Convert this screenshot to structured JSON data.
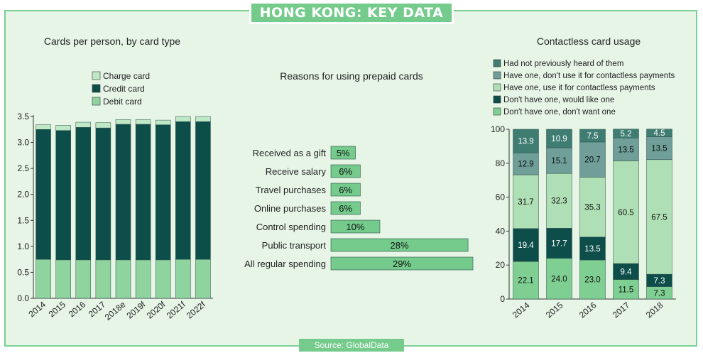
{
  "header": {
    "title": "HONG KONG: KEY DATA"
  },
  "footer": {
    "source": "Source: GlobalData"
  },
  "colors": {
    "charge": "#bfe8c6",
    "credit": "#0d4e4a",
    "debit": "#8fd49f",
    "prepaid": "#74cb8c",
    "c1": "#7fcf93",
    "c2": "#0e4e4a",
    "c3": "#afdfb4",
    "c4": "#6f9f98",
    "c5": "#3f7c72"
  },
  "chart_data": [
    {
      "type": "bar",
      "stacked": true,
      "title": "Cards per person, by card type",
      "categories": [
        "2014",
        "2015",
        "2016",
        "2017",
        "2018e",
        "2019f",
        "2020f",
        "2021f",
        "2022f"
      ],
      "series": [
        {
          "name": "Debit card",
          "values": [
            0.75,
            0.74,
            0.74,
            0.74,
            0.74,
            0.74,
            0.74,
            0.75,
            0.75
          ]
        },
        {
          "name": "Credit card",
          "values": [
            2.5,
            2.49,
            2.55,
            2.54,
            2.61,
            2.61,
            2.6,
            2.65,
            2.65
          ]
        },
        {
          "name": "Charge card",
          "values": [
            0.09,
            0.1,
            0.1,
            0.1,
            0.09,
            0.09,
            0.09,
            0.1,
            0.1
          ]
        }
      ],
      "legend": [
        "Charge card",
        "Credit card",
        "Debit card"
      ],
      "yticks": [
        "0.0",
        "0.5",
        "1.0",
        "1.5",
        "2.0",
        "2.5",
        "3.0",
        "3.5"
      ],
      "ylim": [
        0,
        3.5
      ]
    },
    {
      "type": "bar",
      "orientation": "horizontal",
      "title": "Reasons for using prepaid cards",
      "categories": [
        "Received as a gift",
        "Receive salary",
        "Travel purchases",
        "Online purchases",
        "Control spending",
        "Public transport",
        "All regular spending"
      ],
      "values": [
        5,
        6,
        6,
        6,
        10,
        28,
        29
      ],
      "labels": [
        "5%",
        "6%",
        "6%",
        "6%",
        "10%",
        "28%",
        "29%"
      ]
    },
    {
      "type": "bar",
      "stacked": true,
      "title": "Contactless card usage",
      "categories": [
        "2014",
        "2015",
        "2016",
        "2017",
        "2018"
      ],
      "series": [
        {
          "name": "Don't have one, don't want one",
          "values": [
            22.1,
            24.0,
            23.0,
            11.5,
            7.3
          ],
          "labels": [
            "22.1",
            "24.0",
            "23.0",
            "11.5",
            "7.3"
          ]
        },
        {
          "name": "Don't have one, would like one",
          "values": [
            19.4,
            17.7,
            13.5,
            9.4,
            7.3
          ],
          "labels": [
            "19.4",
            "17.7",
            "13.5",
            "9.4",
            "7.3"
          ]
        },
        {
          "name": "Have one, use it for contactless payments",
          "values": [
            31.7,
            32.3,
            35.3,
            60.5,
            67.5
          ],
          "labels": [
            "31.7",
            "32.3",
            "35.3",
            "60.5",
            "67.5"
          ]
        },
        {
          "name": "Have one, don't use it for contactless payments",
          "values": [
            12.9,
            15.1,
            20.7,
            13.5,
            13.5
          ],
          "labels": [
            "12.9",
            "15.1",
            "20.7",
            "13.5",
            "13.5"
          ]
        },
        {
          "name": "Had not previously heard of them",
          "values": [
            13.9,
            10.9,
            7.5,
            5.2,
            4.5
          ],
          "labels": [
            "13.9",
            "10.9",
            "7.5",
            "5.2",
            "4.5"
          ]
        }
      ],
      "legend": [
        "Had not previously heard of them",
        "Have one, don't use it for contactless payments",
        "Have one, use it for contactless payments",
        "Don't have one, would like one",
        "Don't have one, don't want one"
      ],
      "yticks": [
        "0",
        "20",
        "40",
        "60",
        "80",
        "100"
      ],
      "ylim": [
        0,
        100
      ]
    }
  ]
}
